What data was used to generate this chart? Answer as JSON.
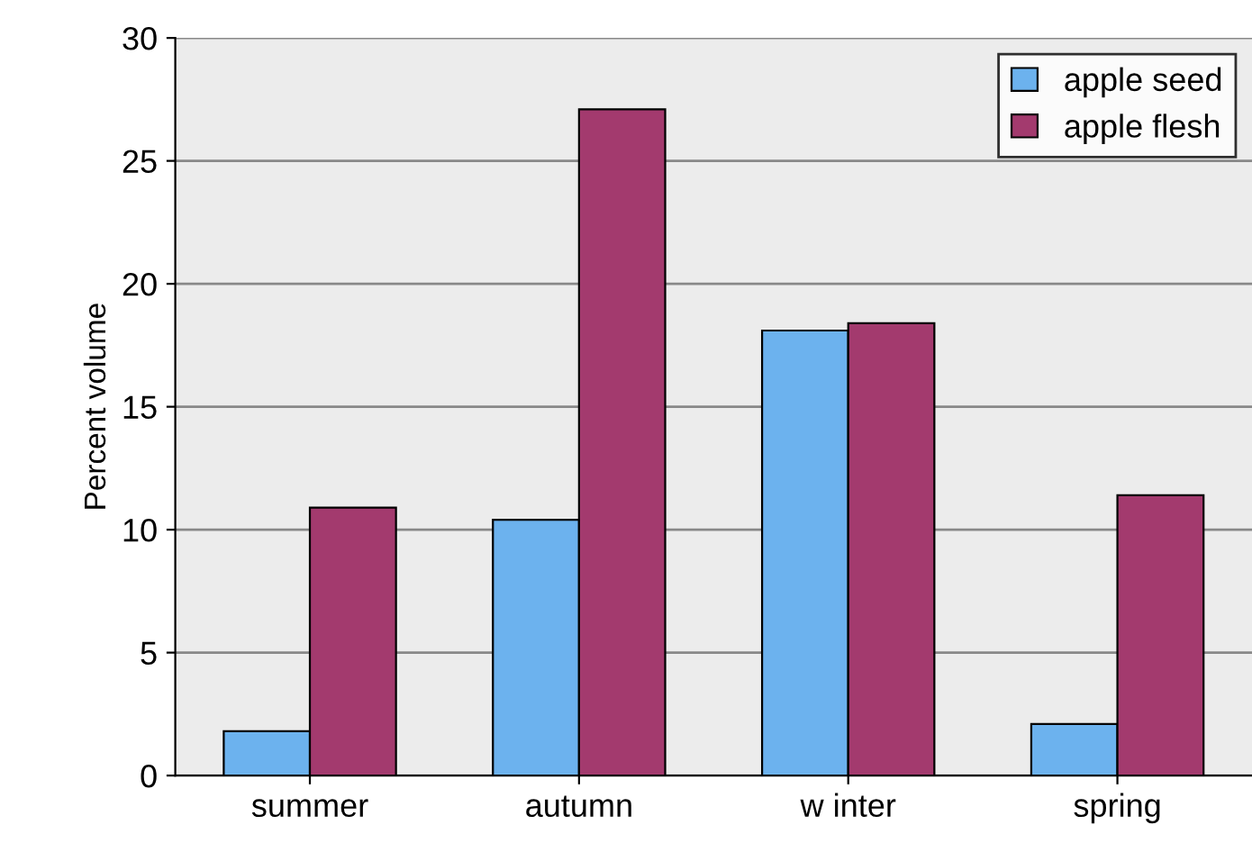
{
  "chart_data": {
    "type": "bar",
    "categories": [
      "summer",
      "autumn",
      "w inter",
      "spring"
    ],
    "series": [
      {
        "name": "apple seed",
        "color": "#6cb2ee",
        "values": [
          1.8,
          10.4,
          18.1,
          2.1
        ]
      },
      {
        "name": "apple flesh",
        "color": "#a33a6e",
        "values": [
          10.9,
          27.1,
          18.4,
          11.4
        ]
      }
    ],
    "ylabel": "Percent volume",
    "ylim": [
      0,
      30
    ],
    "yticks": [
      0,
      5,
      10,
      15,
      20,
      25,
      30
    ],
    "grid": "y",
    "legend": "top right"
  }
}
